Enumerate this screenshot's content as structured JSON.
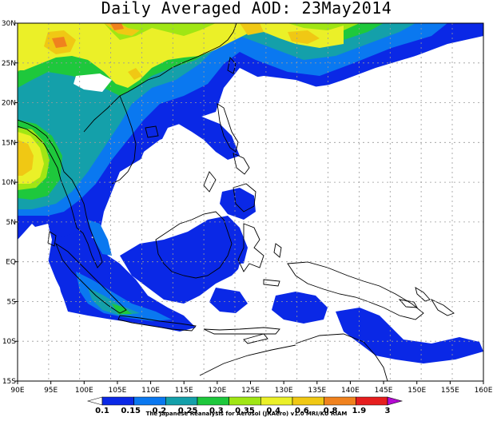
{
  "title": "Daily Averaged AOD: 23May2014",
  "credit": "The Japanese Reanalysis for Aerosol (JRAero) v1.0 MRI/KU RIAM",
  "x_ticks": [
    "90E",
    "95E",
    "100E",
    "105E",
    "110E",
    "115E",
    "120E",
    "125E",
    "130E",
    "135E",
    "140E",
    "145E",
    "150E",
    "155E",
    "160E"
  ],
  "y_ticks": [
    "30N",
    "25N",
    "20N",
    "15N",
    "10N",
    "5N",
    "EQ",
    "5S",
    "10S",
    "15S"
  ],
  "legend": {
    "labels": [
      "0.1",
      "0.15",
      "0.2",
      "0.25",
      "0.3",
      "0.35",
      "0.4",
      "0.6",
      "0.8",
      "1.9",
      "3"
    ],
    "colors": [
      "#ffffff",
      "#0a28e6",
      "#0a78f0",
      "#14a0aa",
      "#1ec83c",
      "#a0e614",
      "#ebf028",
      "#f0c814",
      "#f0821e",
      "#e61e1e",
      "#b40ad2"
    ]
  }
}
